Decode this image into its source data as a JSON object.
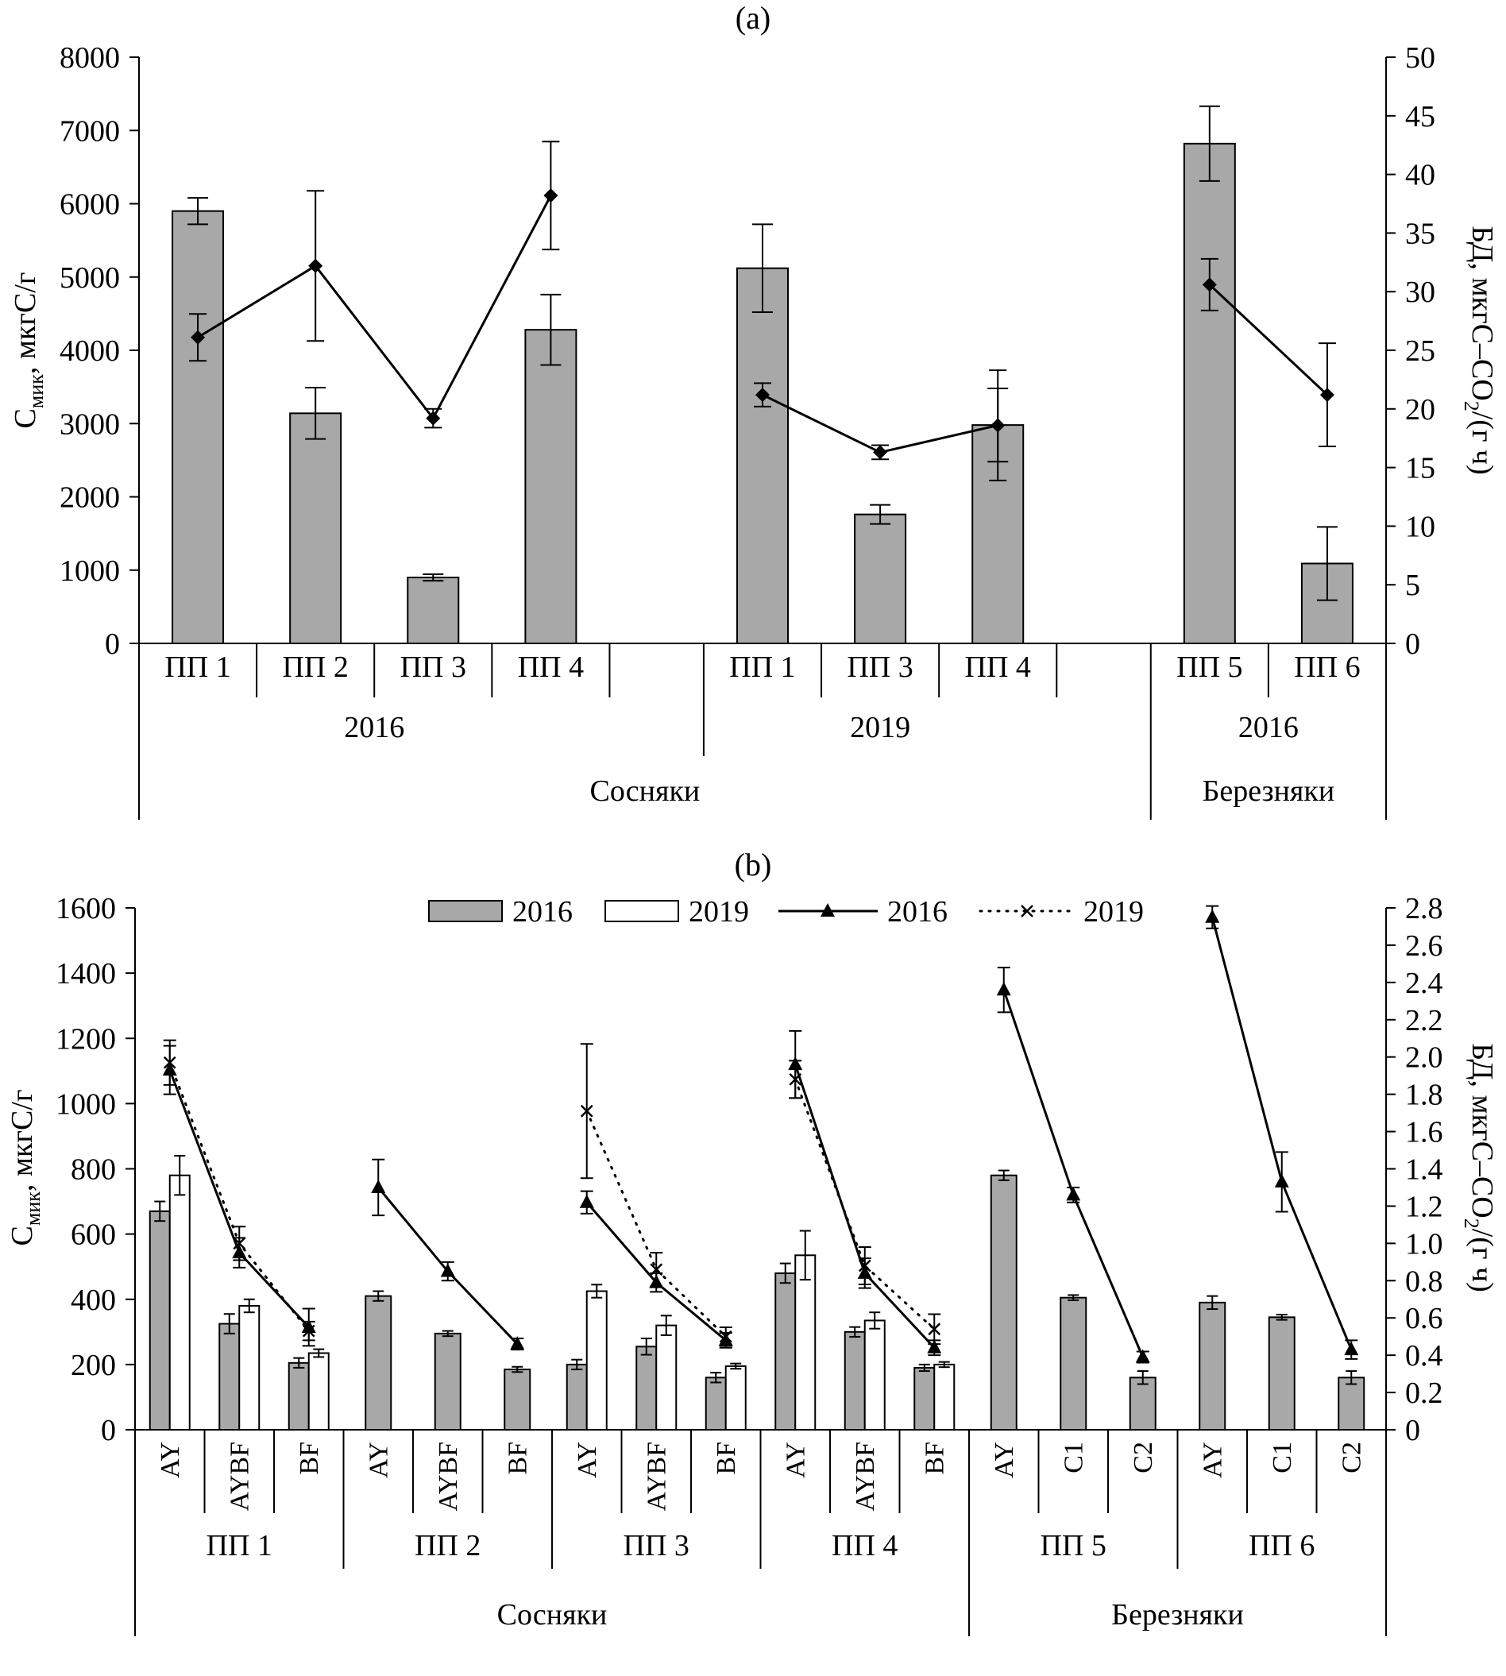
{
  "figure": {
    "background": "#ffffff",
    "bar_fill_2016": "#a8a8a8",
    "bar_fill_2019": "#ffffff",
    "stroke": "#000000"
  },
  "chart_data": [
    {
      "type": "bar+line",
      "panel_label": "(a)",
      "ylabel_left": "Смик, мкгС/г",
      "ylabel_left_parts": [
        {
          "t": "С"
        },
        {
          "t": "мик",
          "sub": true
        },
        {
          "t": ", мкгС/г"
        }
      ],
      "ylabel_right": "БД, мкгС–СО2/(г ч)",
      "ylabel_right_parts": [
        {
          "t": "БД, мкгС–СО"
        },
        {
          "t": "2",
          "sub": true
        },
        {
          "t": "/(г ч)"
        }
      ],
      "ylim_left": [
        0,
        8000
      ],
      "ytick_left": 1000,
      "ylim_right": [
        0,
        50
      ],
      "ytick_right": 5,
      "bar_series_name": "Смик",
      "line_series_name": "БД",
      "forest_labels": [
        "Сосняки",
        "Березняки"
      ],
      "groups": [
        {
          "year": "2016",
          "forest": "Сосняки",
          "categories": [
            "ПП 1",
            "ПП 2",
            "ПП 3",
            "ПП 4"
          ],
          "bars": [
            5900,
            3140,
            900,
            4280
          ],
          "bar_err": [
            180,
            350,
            45,
            480
          ],
          "line": [
            26.1,
            32.2,
            19.2,
            38.2
          ],
          "line_err": [
            2.0,
            6.4,
            0.8,
            4.6
          ]
        },
        {
          "year": "2019",
          "forest": "Сосняки",
          "categories": [
            "ПП 1",
            "ПП 3",
            "ПП 4"
          ],
          "bars": [
            5120,
            1760,
            2980
          ],
          "bar_err": [
            600,
            130,
            500
          ],
          "line": [
            21.2,
            16.3,
            18.6
          ],
          "line_err": [
            1.0,
            0.6,
            4.7
          ]
        },
        {
          "year": "2016",
          "forest": "Березняки",
          "categories": [
            "ПП 5",
            "ПП 6"
          ],
          "bars": [
            6820,
            1090
          ],
          "bar_err": [
            510,
            500
          ],
          "line": [
            30.6,
            21.2
          ],
          "line_err": [
            2.2,
            4.4
          ]
        }
      ]
    },
    {
      "type": "grouped-bar+lines",
      "panel_label": "(b)",
      "legend": [
        {
          "label": "2016",
          "kind": "bar-gray"
        },
        {
          "label": "2019",
          "kind": "bar-white"
        },
        {
          "label": "2016",
          "kind": "line-solid-triangle"
        },
        {
          "label": "2019",
          "kind": "line-dotted-x"
        }
      ],
      "ylabel_left": "Смик, мкгС/г",
      "ylabel_left_parts": [
        {
          "t": "С"
        },
        {
          "t": "мик",
          "sub": true
        },
        {
          "t": ", мкгС/г"
        }
      ],
      "ylabel_right": "БД, мкгС–СО2/(г ч)",
      "ylabel_right_parts": [
        {
          "t": "БД, мкгС–СО"
        },
        {
          "t": "2",
          "sub": true
        },
        {
          "t": "/(г ч)"
        }
      ],
      "ylim_left": [
        0,
        1600
      ],
      "ytick_left": 200,
      "ylim_right": [
        0,
        2.8
      ],
      "ytick_right": 0.2,
      "forest_labels": [
        "Сосняки",
        "Березняки"
      ],
      "forest_span_groups": [
        4,
        2
      ],
      "groups": [
        {
          "label": "ПП 1",
          "categories": [
            "AY",
            "AYBF",
            "BF"
          ],
          "bars_2016": [
            670,
            325,
            205
          ],
          "bars_2016_err": [
            30,
            30,
            15
          ],
          "bars_2019": [
            780,
            380,
            235
          ],
          "bars_2019_err": [
            60,
            20,
            12
          ],
          "line_2016": [
            1.93,
            0.95,
            0.55
          ],
          "line_2016_err": [
            0.13,
            0.08,
            0.1
          ],
          "line_2019": [
            1.97,
            1.0,
            0.53
          ],
          "line_2019_err": [
            0.12,
            0.09,
            0.05
          ]
        },
        {
          "label": "ПП 2",
          "categories": [
            "AY",
            "AYBF",
            "BF"
          ],
          "bars_2016": [
            410,
            295,
            185
          ],
          "bars_2016_err": [
            15,
            8,
            8
          ],
          "bars_2019": null,
          "bars_2019_err": null,
          "line_2016": [
            1.3,
            0.85,
            0.46
          ],
          "line_2016_err": [
            0.15,
            0.05,
            0.03
          ],
          "line_2019": null,
          "line_2019_err": null
        },
        {
          "label": "ПП 3",
          "categories": [
            "AY",
            "AYBF",
            "BF"
          ],
          "bars_2016": [
            200,
            255,
            160
          ],
          "bars_2016_err": [
            15,
            25,
            15
          ],
          "bars_2019": [
            425,
            320,
            195
          ],
          "bars_2019_err": [
            20,
            30,
            8
          ],
          "line_2016": [
            1.22,
            0.79,
            0.48
          ],
          "line_2016_err": [
            0.06,
            0.05,
            0.04
          ],
          "line_2019": [
            1.71,
            0.86,
            0.5
          ],
          "line_2019_err": [
            0.36,
            0.09,
            0.05
          ]
        },
        {
          "label": "ПП 4",
          "categories": [
            "AY",
            "AYBF",
            "BF"
          ],
          "bars_2016": [
            480,
            300,
            190
          ],
          "bars_2016_err": [
            30,
            15,
            10
          ],
          "bars_2019": [
            535,
            335,
            200
          ],
          "bars_2019_err": [
            75,
            25,
            8
          ],
          "line_2016": [
            1.96,
            0.84,
            0.44
          ],
          "line_2016_err": [
            0.18,
            0.08,
            0.04
          ],
          "line_2019": [
            1.88,
            0.88,
            0.54
          ],
          "line_2019_err": [
            0.1,
            0.1,
            0.08
          ]
        },
        {
          "label": "ПП 5",
          "categories": [
            "AY",
            "C1",
            "C2"
          ],
          "bars_2016": [
            780,
            405,
            160
          ],
          "bars_2016_err": [
            15,
            8,
            20
          ],
          "bars_2019": null,
          "bars_2019_err": null,
          "line_2016": [
            2.36,
            1.26,
            0.39
          ],
          "line_2016_err": [
            0.12,
            0.04,
            0.03
          ],
          "line_2019": null,
          "line_2019_err": null
        },
        {
          "label": "ПП 6",
          "categories": [
            "AY",
            "C1",
            "C2"
          ],
          "bars_2016": [
            390,
            345,
            160
          ],
          "bars_2016_err": [
            20,
            8,
            20
          ],
          "bars_2019": null,
          "bars_2019_err": null,
          "line_2016": [
            2.75,
            1.33,
            0.43
          ],
          "line_2016_err": [
            0.06,
            0.16,
            0.05
          ],
          "line_2019": null,
          "line_2019_err": null
        }
      ]
    }
  ]
}
